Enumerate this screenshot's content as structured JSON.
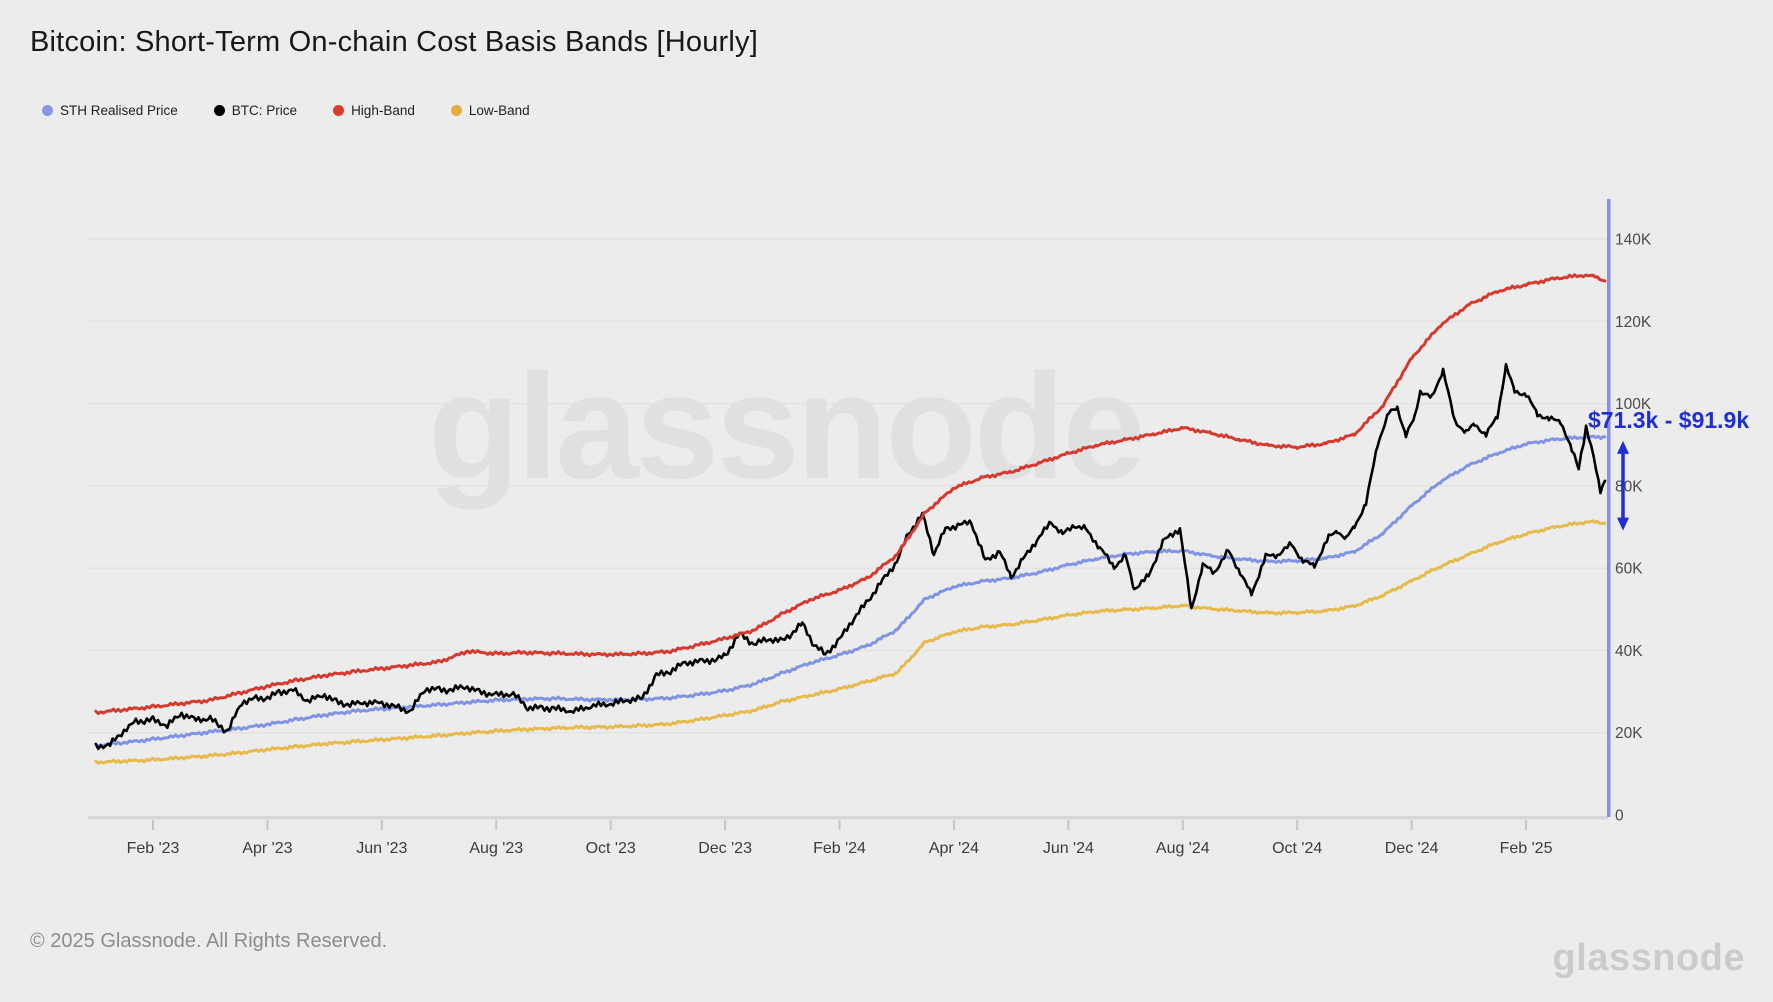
{
  "page": {
    "title": "Bitcoin: Short-Term On-chain Cost Basis Bands [Hourly]"
  },
  "legend": {
    "items": [
      {
        "label": "STH Realised Price",
        "color": "#8a94e8"
      },
      {
        "label": "BTC: Price",
        "color": "#000000"
      },
      {
        "label": "High-Band",
        "color": "#e03a2e"
      },
      {
        "label": "Low-Band",
        "color": "#e2ae3e"
      }
    ]
  },
  "chart_data": {
    "type": "line",
    "title": "Bitcoin: Short-Term On-chain Cost Basis Bands [Hourly]",
    "y_unit": "USD (thousands)",
    "ylim": [
      0,
      150
    ],
    "grid": "horizontal",
    "legend_position": "top-left",
    "x_unit": "months since Jan 2023",
    "x_ticks": [
      {
        "m": 1,
        "label": "Feb '23"
      },
      {
        "m": 3,
        "label": "Apr '23"
      },
      {
        "m": 5,
        "label": "Jun '23"
      },
      {
        "m": 7,
        "label": "Aug '23"
      },
      {
        "m": 9,
        "label": "Oct '23"
      },
      {
        "m": 11,
        "label": "Dec '23"
      },
      {
        "m": 13,
        "label": "Feb '24"
      },
      {
        "m": 15,
        "label": "Apr '24"
      },
      {
        "m": 17,
        "label": "Jun '24"
      },
      {
        "m": 19,
        "label": "Aug '24"
      },
      {
        "m": 21,
        "label": "Oct '24"
      },
      {
        "m": 23,
        "label": "Dec '24"
      },
      {
        "m": 25,
        "label": "Feb '25"
      }
    ],
    "y_ticks": [
      {
        "v": 0,
        "label": "0"
      },
      {
        "v": 20,
        "label": "20K"
      },
      {
        "v": 40,
        "label": "40K"
      },
      {
        "v": 60,
        "label": "60K"
      },
      {
        "v": 80,
        "label": "80K"
      },
      {
        "v": 100,
        "label": "100K"
      },
      {
        "v": 120,
        "label": "120K"
      },
      {
        "v": 140,
        "label": "140K"
      }
    ],
    "series": [
      {
        "name": "Low-Band",
        "color": "#e6ba4b",
        "width": 3,
        "jitter": 1.0,
        "points": [
          [
            0,
            12.8
          ],
          [
            0.5,
            13.1
          ],
          [
            1,
            13.4
          ],
          [
            1.5,
            13.9
          ],
          [
            2,
            14.4
          ],
          [
            2.5,
            15.1
          ],
          [
            3,
            15.9
          ],
          [
            3.5,
            16.6
          ],
          [
            4,
            17.3
          ],
          [
            4.5,
            17.8
          ],
          [
            5,
            18.3
          ],
          [
            5.5,
            18.8
          ],
          [
            6,
            19.3
          ],
          [
            6.5,
            19.9
          ],
          [
            7,
            20.4
          ],
          [
            7.5,
            20.8
          ],
          [
            8,
            21.1
          ],
          [
            8.5,
            21.3
          ],
          [
            9,
            21.4
          ],
          [
            9.5,
            21.7
          ],
          [
            10,
            22.1
          ],
          [
            10.5,
            23.1
          ],
          [
            11,
            24.2
          ],
          [
            11.5,
            25.4
          ],
          [
            12,
            27.6
          ],
          [
            12.5,
            29.1
          ],
          [
            13,
            30.6
          ],
          [
            13.5,
            32.5
          ],
          [
            14,
            34.5
          ],
          [
            14.5,
            42.0
          ],
          [
            15,
            44.5
          ],
          [
            15.5,
            45.7
          ],
          [
            16,
            46.3
          ],
          [
            16.5,
            47.4
          ],
          [
            17,
            48.6
          ],
          [
            17.5,
            49.5
          ],
          [
            18,
            49.9
          ],
          [
            18.5,
            50.3
          ],
          [
            19,
            50.9
          ],
          [
            19.5,
            50.1
          ],
          [
            20,
            49.6
          ],
          [
            20.5,
            49.1
          ],
          [
            21,
            49.2
          ],
          [
            21.5,
            49.6
          ],
          [
            22,
            50.8
          ],
          [
            22.5,
            53.4
          ],
          [
            23,
            56.9
          ],
          [
            23.5,
            60.4
          ],
          [
            24,
            63.3
          ],
          [
            24.5,
            66.2
          ],
          [
            25,
            68.3
          ],
          [
            25.5,
            70.0
          ],
          [
            26,
            71.1
          ],
          [
            26.2,
            71.3
          ],
          [
            26.38,
            70.9
          ]
        ]
      },
      {
        "name": "STH Realised Price",
        "color": "#8193e3",
        "width": 3,
        "jitter": 1.0,
        "points": [
          [
            0,
            16.9
          ],
          [
            0.5,
            17.6
          ],
          [
            1,
            18.4
          ],
          [
            1.5,
            19.3
          ],
          [
            2,
            20.2
          ],
          [
            2.5,
            21.0
          ],
          [
            3,
            22.0
          ],
          [
            3.5,
            23.2
          ],
          [
            4,
            24.3
          ],
          [
            4.5,
            25.2
          ],
          [
            5,
            25.8
          ],
          [
            5.5,
            26.3
          ],
          [
            6,
            26.8
          ],
          [
            6.5,
            27.4
          ],
          [
            7,
            27.9
          ],
          [
            7.5,
            28.2
          ],
          [
            8,
            28.3
          ],
          [
            8.5,
            28.1
          ],
          [
            9,
            28.0
          ],
          [
            9.5,
            28.1
          ],
          [
            10,
            28.4
          ],
          [
            10.5,
            29.2
          ],
          [
            11,
            30.2
          ],
          [
            11.5,
            31.8
          ],
          [
            12,
            34.5
          ],
          [
            12.5,
            37.0
          ],
          [
            13,
            38.9
          ],
          [
            13.5,
            41.2
          ],
          [
            14,
            45.0
          ],
          [
            14.5,
            52.5
          ],
          [
            15,
            55.5
          ],
          [
            15.5,
            56.8
          ],
          [
            16,
            57.6
          ],
          [
            16.5,
            59.0
          ],
          [
            17,
            60.8
          ],
          [
            17.5,
            62.3
          ],
          [
            18,
            63.4
          ],
          [
            18.5,
            64.0
          ],
          [
            19,
            64.2
          ],
          [
            19.5,
            63.0
          ],
          [
            20,
            62.2
          ],
          [
            20.5,
            61.6
          ],
          [
            21,
            61.8
          ],
          [
            21.5,
            62.4
          ],
          [
            22,
            64.0
          ],
          [
            22.5,
            68.5
          ],
          [
            23,
            75.2
          ],
          [
            23.5,
            81.0
          ],
          [
            24,
            85.0
          ],
          [
            24.5,
            87.9
          ],
          [
            25,
            90.2
          ],
          [
            25.5,
            91.3
          ],
          [
            26,
            91.8
          ],
          [
            26.38,
            91.9
          ]
        ]
      },
      {
        "name": "BTC: Price",
        "color": "#000000",
        "width": 2.6,
        "jitter": 2.2,
        "points": [
          [
            0,
            16.6
          ],
          [
            0.25,
            17.1
          ],
          [
            0.45,
            20.0
          ],
          [
            0.7,
            22.7
          ],
          [
            0.85,
            23.0
          ],
          [
            1,
            23.1
          ],
          [
            1.25,
            21.8
          ],
          [
            1.5,
            24.6
          ],
          [
            1.75,
            23.2
          ],
          [
            2,
            23.4
          ],
          [
            2.15,
            21.9
          ],
          [
            2.3,
            20.2
          ],
          [
            2.55,
            27.4
          ],
          [
            2.8,
            28.3
          ],
          [
            3,
            28.4
          ],
          [
            3.2,
            29.8
          ],
          [
            3.45,
            30.4
          ],
          [
            3.7,
            27.7
          ],
          [
            4,
            29.2
          ],
          [
            4.2,
            27.5
          ],
          [
            4.4,
            26.8
          ],
          [
            4.7,
            27.3
          ],
          [
            5,
            27.2
          ],
          [
            5.25,
            26.3
          ],
          [
            5.5,
            25.1
          ],
          [
            5.75,
            30.6
          ],
          [
            6,
            30.5
          ],
          [
            6.2,
            30.3
          ],
          [
            6.45,
            31.3
          ],
          [
            6.7,
            29.9
          ],
          [
            7,
            29.2
          ],
          [
            7.3,
            29.4
          ],
          [
            7.55,
            26.1
          ],
          [
            7.8,
            26.0
          ],
          [
            8,
            25.9
          ],
          [
            8.35,
            25.2
          ],
          [
            8.7,
            26.6
          ],
          [
            9,
            27.0
          ],
          [
            9.3,
            27.9
          ],
          [
            9.55,
            28.4
          ],
          [
            9.8,
            34.0
          ],
          [
            10,
            34.6
          ],
          [
            10.3,
            37.0
          ],
          [
            10.6,
            37.4
          ],
          [
            10.85,
            37.8
          ],
          [
            11,
            38.7
          ],
          [
            11.25,
            44.1
          ],
          [
            11.5,
            41.5
          ],
          [
            11.75,
            42.8
          ],
          [
            12,
            42.3
          ],
          [
            12.15,
            44.0
          ],
          [
            12.35,
            46.6
          ],
          [
            12.55,
            41.5
          ],
          [
            12.75,
            39.0
          ],
          [
            13,
            42.6
          ],
          [
            13.25,
            47.8
          ],
          [
            13.5,
            52.1
          ],
          [
            13.75,
            57.0
          ],
          [
            14,
            61.5
          ],
          [
            14.2,
            68.3
          ],
          [
            14.45,
            73.1
          ],
          [
            14.65,
            63.5
          ],
          [
            14.85,
            69.5
          ],
          [
            15.1,
            70.5
          ],
          [
            15.3,
            71.2
          ],
          [
            15.55,
            61.8
          ],
          [
            15.8,
            64.0
          ],
          [
            16,
            57.8
          ],
          [
            16.2,
            62.0
          ],
          [
            16.45,
            66.8
          ],
          [
            16.7,
            71.2
          ],
          [
            16.9,
            68.2
          ],
          [
            17.1,
            70.4
          ],
          [
            17.3,
            69.5
          ],
          [
            17.55,
            65.0
          ],
          [
            17.8,
            60.3
          ],
          [
            18,
            62.9
          ],
          [
            18.15,
            55.0
          ],
          [
            18.4,
            58.0
          ],
          [
            18.65,
            66.5
          ],
          [
            18.95,
            69.6
          ],
          [
            19.15,
            50.0
          ],
          [
            19.35,
            60.8
          ],
          [
            19.55,
            59.0
          ],
          [
            19.8,
            64.2
          ],
          [
            20,
            59.0
          ],
          [
            20.2,
            53.6
          ],
          [
            20.45,
            62.9
          ],
          [
            20.65,
            63.2
          ],
          [
            20.9,
            65.8
          ],
          [
            21.1,
            61.7
          ],
          [
            21.3,
            60.6
          ],
          [
            21.55,
            67.5
          ],
          [
            21.7,
            69.2
          ],
          [
            21.85,
            67.0
          ],
          [
            22,
            70.2
          ],
          [
            22.2,
            75.5
          ],
          [
            22.4,
            90.0
          ],
          [
            22.6,
            97.6
          ],
          [
            22.75,
            99.1
          ],
          [
            22.9,
            92.1
          ],
          [
            23.05,
            96.6
          ],
          [
            23.15,
            103.0
          ],
          [
            23.35,
            101.3
          ],
          [
            23.55,
            108.2
          ],
          [
            23.75,
            95.8
          ],
          [
            23.95,
            93.0
          ],
          [
            24.1,
            95.0
          ],
          [
            24.3,
            92.4
          ],
          [
            24.5,
            97.0
          ],
          [
            24.65,
            109.1
          ],
          [
            24.8,
            103.0
          ],
          [
            25,
            102.2
          ],
          [
            25.2,
            97.5
          ],
          [
            25.4,
            96.2
          ],
          [
            25.6,
            95.9
          ],
          [
            25.8,
            88.6
          ],
          [
            25.92,
            84.6
          ],
          [
            26.05,
            94.2
          ],
          [
            26.18,
            87.0
          ],
          [
            26.3,
            79.0
          ],
          [
            26.38,
            81.2
          ]
        ]
      },
      {
        "name": "High-Band",
        "color": "#d63a2e",
        "width": 3,
        "jitter": 1.1,
        "points": [
          [
            0,
            24.9
          ],
          [
            0.5,
            25.6
          ],
          [
            1,
            26.3
          ],
          [
            1.5,
            27.1
          ],
          [
            2,
            27.9
          ],
          [
            2.5,
            29.6
          ],
          [
            3,
            31.3
          ],
          [
            3.5,
            32.7
          ],
          [
            4,
            33.9
          ],
          [
            4.5,
            34.8
          ],
          [
            5,
            35.6
          ],
          [
            5.5,
            36.4
          ],
          [
            6,
            37.2
          ],
          [
            6.5,
            39.8
          ],
          [
            7,
            39.2
          ],
          [
            7.5,
            39.5
          ],
          [
            8,
            39.3
          ],
          [
            8.5,
            39.1
          ],
          [
            9,
            39.0
          ],
          [
            9.5,
            39.2
          ],
          [
            10,
            39.7
          ],
          [
            10.5,
            41.2
          ],
          [
            11,
            42.9
          ],
          [
            11.5,
            44.9
          ],
          [
            12,
            48.9
          ],
          [
            12.5,
            52.4
          ],
          [
            13,
            54.6
          ],
          [
            13.5,
            57.7
          ],
          [
            14,
            63.2
          ],
          [
            14.5,
            73.5
          ],
          [
            15,
            79.5
          ],
          [
            15.5,
            82.0
          ],
          [
            16,
            83.4
          ],
          [
            16.5,
            85.6
          ],
          [
            17,
            87.9
          ],
          [
            17.5,
            89.9
          ],
          [
            18,
            91.2
          ],
          [
            18.5,
            92.6
          ],
          [
            19,
            94.1
          ],
          [
            19.5,
            92.8
          ],
          [
            20,
            91.2
          ],
          [
            20.5,
            89.8
          ],
          [
            21,
            89.4
          ],
          [
            21.5,
            90.3
          ],
          [
            22,
            92.5
          ],
          [
            22.5,
            99.5
          ],
          [
            23,
            111.0
          ],
          [
            23.5,
            119.0
          ],
          [
            24,
            124.0
          ],
          [
            24.5,
            127.3
          ],
          [
            25,
            128.9
          ],
          [
            25.5,
            130.4
          ],
          [
            26,
            131.2
          ],
          [
            26.2,
            130.9
          ],
          [
            26.38,
            129.8
          ]
        ]
      }
    ],
    "annotation": {
      "label": "$71.3k - $91.9k",
      "low_value": 71.3,
      "high_value": 91.9,
      "color": "#1f2fd6"
    }
  },
  "watermark": {
    "text": "glassnode"
  },
  "footer": {
    "copyright": "© 2025 Glassnode. All Rights Reserved.",
    "logo": "glassnode"
  }
}
